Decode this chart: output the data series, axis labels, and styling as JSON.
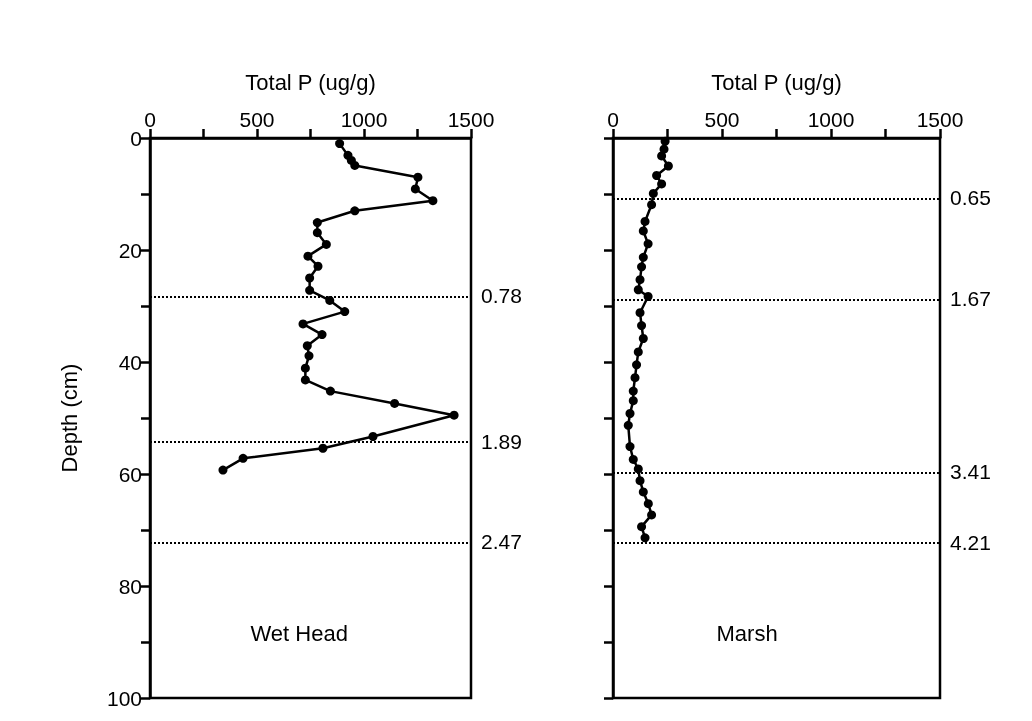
{
  "chart_data": [
    {
      "type": "line",
      "xlabel": "Total P (ug/g)",
      "ylabel": "Depth (cm)",
      "xlim": [
        0,
        1500
      ],
      "xticks": [
        0,
        {
          "value": 250,
          "label": null
        },
        500,
        {
          "value": 750,
          "label": null
        },
        1000,
        {
          "value": 1250,
          "label": null
        },
        1500
      ],
      "ylim": [
        100,
        0
      ],
      "yticks": [
        0,
        {
          "value": 10,
          "label": null
        },
        20,
        {
          "value": 30,
          "label": null
        },
        40,
        {
          "value": 50,
          "label": null
        },
        60,
        {
          "value": 70,
          "label": null
        },
        80,
        {
          "value": 90,
          "label": null
        },
        100
      ],
      "grid": false,
      "marker": "circle",
      "line_style": "solid",
      "annotations": [
        "Wet Head",
        "0.78",
        "1.89",
        "2.47"
      ],
      "series": [
        {
          "color": "#000000",
          "x": [
            886,
            925,
            941,
            957,
            1252,
            1240,
            1322,
            957,
            782,
            782,
            824,
            738,
            785,
            746,
            746,
            840,
            910,
            715,
            804,
            735,
            743,
            726,
            726,
            843,
            1143,
            1421,
            1042,
            808,
            435,
            341
          ],
          "values": [
            1.0,
            3.1,
            4.0,
            4.9,
            7.0,
            9.1,
            11.2,
            13.0,
            15.1,
            16.9,
            19.0,
            21.1,
            22.9,
            25.0,
            27.2,
            29.0,
            31.0,
            33.2,
            35.1,
            37.1,
            38.9,
            41.1,
            43.2,
            45.2,
            47.4,
            49.5,
            53.3,
            55.4,
            57.2,
            59.3
          ]
        }
      ],
      "ref_lines": [
        {
          "axis": "y",
          "value": 28.3,
          "line_style": "dotted"
        },
        {
          "axis": "y",
          "value": 54.2,
          "line_style": "dotted"
        },
        {
          "axis": "y",
          "value": 72.2,
          "line_style": "dotted"
        }
      ]
    },
    {
      "type": "line",
      "xlabel": "Total P (ug/g)",
      "xlim": [
        0,
        1500
      ],
      "xticks": [
        0,
        {
          "value": 250,
          "label": null
        },
        500,
        {
          "value": 750,
          "label": null
        },
        1000,
        {
          "value": 1250,
          "label": null
        },
        1500
      ],
      "ylim": [
        100,
        0
      ],
      "yticks": [
        {
          "value": 0,
          "label": null
        },
        {
          "value": 10,
          "label": null
        },
        {
          "value": 20,
          "label": null
        },
        {
          "value": 30,
          "label": null
        },
        {
          "value": 40,
          "label": null
        },
        {
          "value": 50,
          "label": null
        },
        {
          "value": 60,
          "label": null
        },
        {
          "value": 70,
          "label": null
        },
        {
          "value": 80,
          "label": null
        },
        {
          "value": 90,
          "label": null
        },
        {
          "value": 100,
          "label": null
        }
      ],
      "tick_labels": "x",
      "grid": false,
      "marker": "circle",
      "line_style": "solid",
      "annotations": [
        "Marsh",
        "0.65",
        "1.67",
        "3.41",
        "4.21"
      ],
      "series": [
        {
          "color": "#000000",
          "x": [
            239,
            234,
            223,
            254,
            200,
            223,
            185,
            177,
            147,
            139,
            161,
            139,
            131,
            124,
            116,
            161,
            124,
            131,
            139,
            116,
            108,
            101,
            93,
            93,
            78,
            70,
            78,
            93,
            116,
            124,
            139,
            162,
            177,
            131,
            147
          ],
          "values": [
            0.6,
            2.0,
            3.2,
            5.0,
            6.7,
            8.2,
            9.9,
            11.9,
            14.9,
            16.6,
            18.9,
            21.3,
            23.0,
            25.3,
            27.1,
            28.3,
            31.2,
            33.5,
            35.8,
            38.2,
            40.5,
            42.8,
            45.2,
            46.9,
            49.2,
            51.3,
            55.1,
            57.4,
            59.1,
            61.2,
            63.2,
            65.3,
            67.3,
            69.4,
            71.4
          ]
        }
      ],
      "ref_lines": [
        {
          "axis": "y",
          "value": 10.8,
          "line_style": "dotted"
        },
        {
          "axis": "y",
          "value": 28.8,
          "line_style": "dotted"
        },
        {
          "axis": "y",
          "value": 59.7,
          "line_style": "dotted"
        },
        {
          "axis": "y",
          "value": 72.3,
          "line_style": "dotted"
        }
      ]
    }
  ]
}
